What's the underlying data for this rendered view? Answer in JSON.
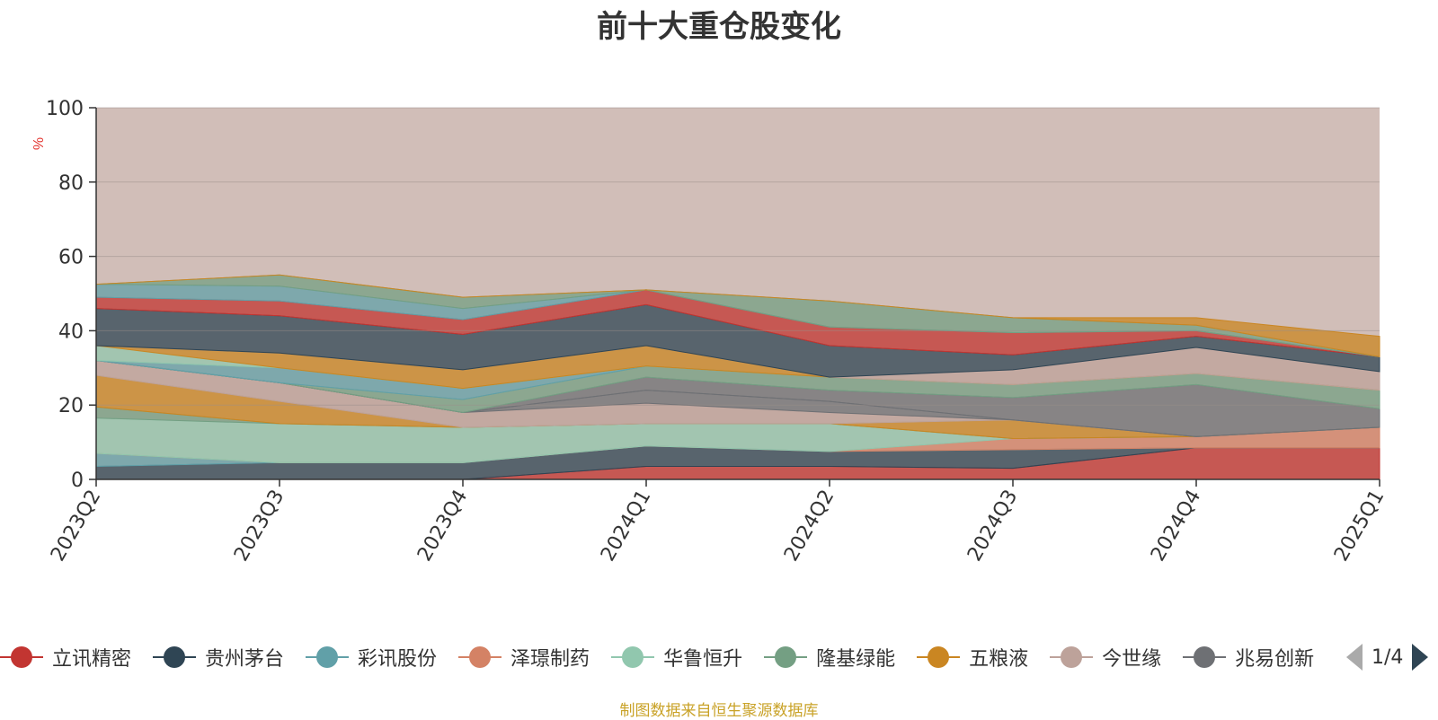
{
  "title": "前十大重仓股变化",
  "source_note": "制图数据来自恒生聚源数据库",
  "legend_page": "1/4",
  "chart_data": {
    "type": "area",
    "stacked": true,
    "ylabel": "%",
    "ylim": [
      0,
      100
    ],
    "yticks": [
      0,
      20,
      40,
      60,
      80,
      100
    ],
    "grid": true,
    "categories": [
      "2023Q2",
      "2023Q3",
      "2023Q4",
      "2024Q1",
      "2024Q2",
      "2024Q3",
      "2024Q4",
      "2025Q1"
    ],
    "series": [
      {
        "name": "立讯精密",
        "color": "#c23531",
        "values": [
          0,
          0,
          0,
          3.5,
          3.5,
          3,
          8.5,
          8.5
        ]
      },
      {
        "name": "贵州茅台",
        "color": "#2f4554",
        "values": [
          3.5,
          4.5,
          4.5,
          5.5,
          4,
          5,
          0,
          0
        ]
      },
      {
        "name": "彩讯股份",
        "color": "#61a0a8",
        "values": [
          3.5,
          0,
          0,
          0,
          0,
          0,
          0,
          0
        ]
      },
      {
        "name": "泽璟制药",
        "color": "#d48265",
        "values": [
          0,
          0,
          0,
          0,
          0,
          3,
          3,
          5.5
        ]
      },
      {
        "name": "华鲁恒升",
        "color": "#91c7ae",
        "values": [
          9.5,
          10.5,
          9.5,
          6,
          7.5,
          0,
          0,
          0
        ]
      },
      {
        "name": "隆基绿能",
        "color": "#749f83",
        "values": [
          3,
          0,
          0,
          0,
          0,
          0,
          0,
          0
        ]
      },
      {
        "name": "五粮液",
        "color": "#ca8622",
        "values": [
          8.5,
          6,
          0,
          0,
          0,
          5,
          0,
          0
        ]
      },
      {
        "name": "今世缘",
        "color": "#bda29a",
        "values": [
          4,
          5,
          4,
          5.5,
          3,
          0,
          0,
          0
        ]
      },
      {
        "name": "兆易创新",
        "color": "#6e7074",
        "values": [
          0,
          0,
          0,
          3.5,
          3,
          0,
          0,
          0
        ]
      }
    ],
    "remainder_color": "#bda29a",
    "upper_layers": [
      {
        "color": "#6e7074",
        "values": [
          0,
          0,
          0,
          3.5,
          3,
          6,
          14,
          5
        ]
      },
      {
        "color": "#749f83",
        "values": [
          0,
          0,
          3.5,
          3,
          3.5,
          3.5,
          3,
          5
        ]
      },
      {
        "color": "#61a0a8",
        "values": [
          0,
          4,
          3,
          0,
          0,
          0,
          0,
          0
        ]
      },
      {
        "color": "#91c7ae",
        "values": [
          4,
          0,
          0,
          0,
          0,
          0,
          0,
          0
        ]
      },
      {
        "color": "#ca8622",
        "values": [
          0,
          4,
          5,
          5.5,
          0,
          0,
          0,
          0
        ]
      },
      {
        "color": "#bda29a",
        "values": [
          0,
          0,
          0,
          0,
          0,
          4,
          7,
          5
        ]
      },
      {
        "color": "#2f4554",
        "values": [
          10,
          10,
          9.5,
          11,
          8.5,
          4,
          3,
          4
        ]
      },
      {
        "color": "#c23531",
        "values": [
          3,
          4,
          4,
          4,
          5,
          6,
          1.5,
          0
        ]
      },
      {
        "color": "#61a0a8",
        "values": [
          3.5,
          4,
          3,
          0,
          0,
          0,
          0,
          0
        ]
      },
      {
        "color": "#749f83",
        "values": [
          0,
          3,
          3,
          0,
          7,
          4,
          1.5,
          0
        ]
      },
      {
        "color": "#ca8622",
        "values": [
          0,
          0,
          0,
          0,
          0,
          0,
          2,
          5.5
        ]
      }
    ]
  }
}
